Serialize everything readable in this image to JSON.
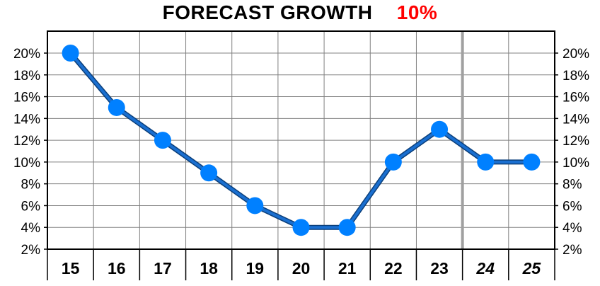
{
  "title": {
    "main": "FORECAST GROWTH",
    "value": "10%",
    "value_color": "#ff0000"
  },
  "chart_data": {
    "type": "line",
    "title": "FORECAST GROWTH 10%",
    "xlabel": "",
    "ylabel": "",
    "categories": [
      "15",
      "16",
      "17",
      "18",
      "19",
      "20",
      "21",
      "22",
      "23",
      "24",
      "25"
    ],
    "forecast_categories": [
      "24",
      "25"
    ],
    "series": [
      {
        "values": [
          20,
          15,
          12,
          9,
          6,
          4,
          4,
          10,
          13,
          10,
          10
        ],
        "color": "#0080ff",
        "line_color": "#1a6fd0"
      }
    ],
    "ylim": [
      2,
      20
    ],
    "y_ticks": [
      2,
      4,
      6,
      8,
      10,
      12,
      14,
      16,
      18,
      20
    ],
    "y_tick_format": "%",
    "y_axis_both_sides": true,
    "grid": true,
    "grid_color": "#808080",
    "forecast_divider_color": "#a0a0a0",
    "legend": "none"
  }
}
